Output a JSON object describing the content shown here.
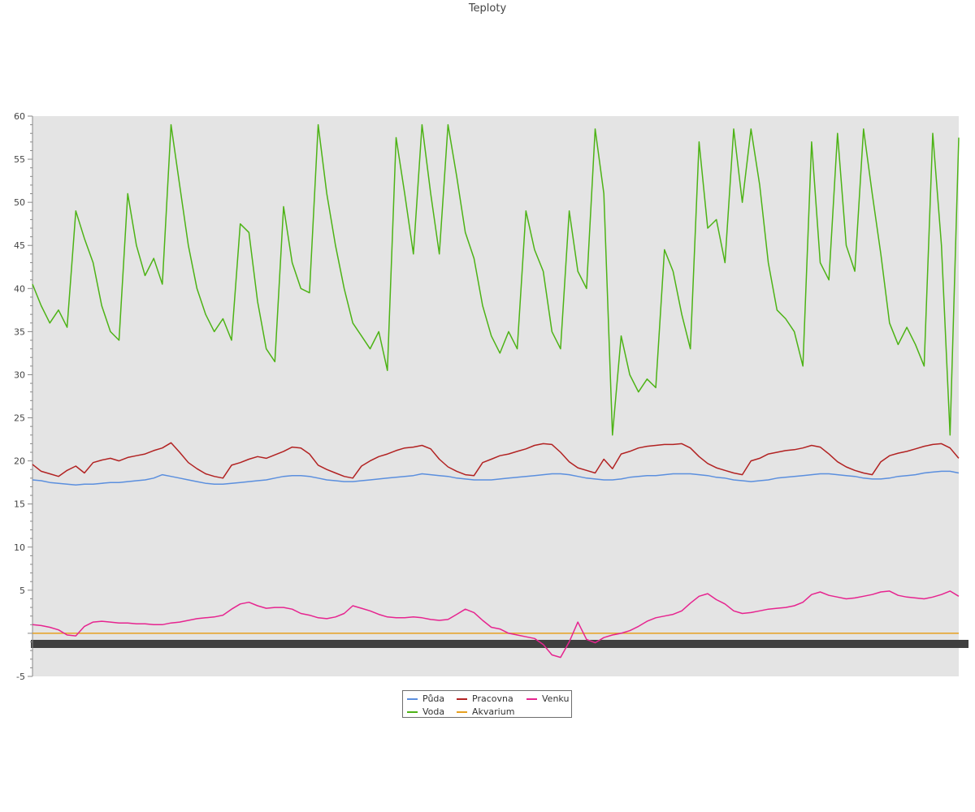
{
  "chart_data": {
    "type": "line",
    "title": "Teploty",
    "xlabel": "",
    "ylabel": "",
    "ylim": [
      -5,
      60
    ],
    "yticks": [
      -5,
      5,
      10,
      15,
      20,
      25,
      30,
      35,
      40,
      45,
      50,
      55,
      60
    ],
    "grid": false,
    "legend_position": "bottom-center",
    "plot_background": "#e4e4e4",
    "x_index_range": [
      0,
      107
    ],
    "series": [
      {
        "name": "Půda",
        "color": "#5b8fde",
        "values": [
          17.8,
          17.7,
          17.5,
          17.4,
          17.3,
          17.2,
          17.3,
          17.3,
          17.4,
          17.5,
          17.5,
          17.6,
          17.7,
          17.8,
          18.0,
          18.4,
          18.2,
          18.0,
          17.8,
          17.6,
          17.4,
          17.3,
          17.3,
          17.4,
          17.5,
          17.6,
          17.7,
          17.8,
          18.0,
          18.2,
          18.3,
          18.3,
          18.2,
          18.0,
          17.8,
          17.7,
          17.6,
          17.6,
          17.7,
          17.8,
          17.9,
          18.0,
          18.1,
          18.2,
          18.3,
          18.5,
          18.4,
          18.3,
          18.2,
          18.0,
          17.9,
          17.8,
          17.8,
          17.8,
          17.9,
          18.0,
          18.1,
          18.2,
          18.3,
          18.4,
          18.5,
          18.5,
          18.4,
          18.2,
          18.0,
          17.9,
          17.8,
          17.8,
          17.9,
          18.1,
          18.2,
          18.3,
          18.3,
          18.4,
          18.5,
          18.5,
          18.5,
          18.4,
          18.3,
          18.1,
          18.0,
          17.8,
          17.7,
          17.6,
          17.7,
          17.8,
          18.0,
          18.1,
          18.2,
          18.3,
          18.4,
          18.5,
          18.5,
          18.4,
          18.3,
          18.2,
          18.0,
          17.9,
          17.9,
          18.0,
          18.2,
          18.3,
          18.4,
          18.6,
          18.7,
          18.8,
          18.8,
          18.6
        ]
      },
      {
        "name": "Pracovna",
        "color": "#b22222",
        "values": [
          19.6,
          18.8,
          18.5,
          18.2,
          18.9,
          19.4,
          18.6,
          19.8,
          20.1,
          20.3,
          20.0,
          20.4,
          20.6,
          20.8,
          21.2,
          21.5,
          22.1,
          21.0,
          19.8,
          19.1,
          18.5,
          18.2,
          18.0,
          19.5,
          19.8,
          20.2,
          20.5,
          20.3,
          20.7,
          21.1,
          21.6,
          21.5,
          20.8,
          19.5,
          19.0,
          18.6,
          18.2,
          18.0,
          19.4,
          20.0,
          20.5,
          20.8,
          21.2,
          21.5,
          21.6,
          21.8,
          21.4,
          20.2,
          19.3,
          18.8,
          18.4,
          18.3,
          19.8,
          20.2,
          20.6,
          20.8,
          21.1,
          21.4,
          21.8,
          22.0,
          21.9,
          21.0,
          19.9,
          19.2,
          18.9,
          18.6,
          20.2,
          19.1,
          20.8,
          21.1,
          21.5,
          21.7,
          21.8,
          21.9,
          21.9,
          22.0,
          21.5,
          20.5,
          19.7,
          19.2,
          18.9,
          18.6,
          18.4,
          20.0,
          20.3,
          20.8,
          21.0,
          21.2,
          21.3,
          21.5,
          21.8,
          21.6,
          20.8,
          19.9,
          19.3,
          18.9,
          18.6,
          18.4,
          19.9,
          20.6,
          20.9,
          21.1,
          21.4,
          21.7,
          21.9,
          22.0,
          21.5,
          20.3
        ]
      },
      {
        "name": "Venku",
        "color": "#e6248f",
        "values": [
          1.0,
          0.9,
          0.7,
          0.4,
          -0.2,
          -0.3,
          0.8,
          1.3,
          1.4,
          1.3,
          1.2,
          1.2,
          1.1,
          1.1,
          1.0,
          1.0,
          1.2,
          1.3,
          1.5,
          1.7,
          1.8,
          1.9,
          2.1,
          2.8,
          3.4,
          3.6,
          3.2,
          2.9,
          3.0,
          3.0,
          2.8,
          2.3,
          2.1,
          1.8,
          1.7,
          1.9,
          2.3,
          3.2,
          2.9,
          2.6,
          2.2,
          1.9,
          1.8,
          1.8,
          1.9,
          1.8,
          1.6,
          1.5,
          1.6,
          2.2,
          2.8,
          2.4,
          1.5,
          0.7,
          0.5,
          0.0,
          -0.2,
          -0.4,
          -0.6,
          -1.3,
          -2.5,
          -2.8,
          -1.0,
          1.3,
          -0.7,
          -1.1,
          -0.5,
          -0.2,
          0.0,
          0.3,
          0.8,
          1.4,
          1.8,
          2.0,
          2.2,
          2.6,
          3.5,
          4.3,
          4.6,
          3.9,
          3.4,
          2.6,
          2.3,
          2.4,
          2.6,
          2.8,
          2.9,
          3.0,
          3.2,
          3.6,
          4.5,
          4.8,
          4.4,
          4.2,
          4.0,
          4.1,
          4.3,
          4.5,
          4.8,
          4.9,
          4.4,
          4.2,
          4.1,
          4.0,
          4.2,
          4.5,
          4.9,
          4.3
        ]
      },
      {
        "name": "Voda",
        "color": "#4db316",
        "values": [
          40.5,
          38.0,
          36.0,
          37.5,
          35.5,
          49.0,
          45.8,
          43.0,
          38.0,
          35.0,
          34.0,
          51.0,
          45.0,
          41.5,
          43.5,
          40.5,
          59.0,
          52.0,
          45.0,
          40.0,
          37.0,
          35.0,
          36.5,
          34.0,
          47.5,
          46.5,
          38.5,
          33.0,
          31.5,
          49.5,
          43.0,
          40.0,
          39.5,
          59.0,
          51.0,
          45.0,
          40.0,
          36.0,
          34.5,
          33.0,
          35.0,
          30.5,
          57.5,
          51.0,
          44.0,
          59.0,
          51.0,
          44.0,
          59.0,
          53.0,
          46.5,
          43.5,
          38.0,
          34.5,
          32.5,
          35.0,
          33.0,
          49.0,
          44.5,
          42.0,
          35.0,
          33.0,
          49.0,
          42.0,
          40.0,
          58.5,
          51.0,
          23.0,
          34.5,
          30.0,
          28.0,
          29.5,
          28.5,
          44.5,
          42.0,
          37.0,
          33.0,
          57.0,
          47.0,
          48.0,
          43.0,
          58.5,
          50.0,
          58.5,
          52.0,
          43.0,
          37.5,
          36.5,
          35.0,
          31.0,
          57.0,
          43.0,
          41.0,
          58.0,
          45.0,
          42.0,
          58.5,
          51.0,
          44.0,
          36.0,
          33.5,
          35.5,
          33.5,
          31.0,
          58.0,
          45.0,
          23.0,
          57.5
        ]
      },
      {
        "name": "Akvarium",
        "color": "#e6a020",
        "values": [
          0.0,
          0.0,
          0.0,
          0.0,
          0.0,
          0.0,
          0.0,
          0.0,
          0.0,
          0.0,
          0.0,
          0.0,
          0.0,
          0.0,
          0.0,
          0.0,
          0.0,
          0.0,
          0.0,
          0.0,
          0.0,
          0.0,
          0.0,
          0.0,
          0.0,
          0.0,
          0.0,
          0.0,
          0.0,
          0.0,
          0.0,
          0.0,
          0.0,
          0.0,
          0.0,
          0.0,
          0.0,
          0.0,
          0.0,
          0.0,
          0.0,
          0.0,
          0.0,
          0.0,
          0.0,
          0.0,
          0.0,
          0.0,
          0.0,
          0.0,
          0.0,
          0.0,
          0.0,
          0.0,
          0.0,
          0.0,
          0.0,
          0.0,
          0.0,
          0.0,
          0.0,
          0.0,
          0.0,
          0.0,
          0.0,
          0.0,
          0.0,
          0.0,
          0.0,
          0.0,
          0.0,
          0.0,
          0.0,
          0.0,
          0.0,
          0.0,
          0.0,
          0.0,
          0.0,
          0.0,
          0.0,
          0.0,
          0.0,
          0.0,
          0.0,
          0.0,
          0.0,
          0.0,
          0.0,
          0.0,
          0.0,
          0.0,
          0.0,
          0.0,
          0.0,
          0.0,
          0.0,
          0.0,
          0.0,
          0.0,
          0.0,
          0.0,
          0.0,
          0.0,
          0.0,
          0.0,
          0.0,
          0.0
        ]
      }
    ],
    "legend_order": [
      "Půda",
      "Pracovna",
      "Venku",
      "Voda",
      "Akvarium"
    ]
  }
}
